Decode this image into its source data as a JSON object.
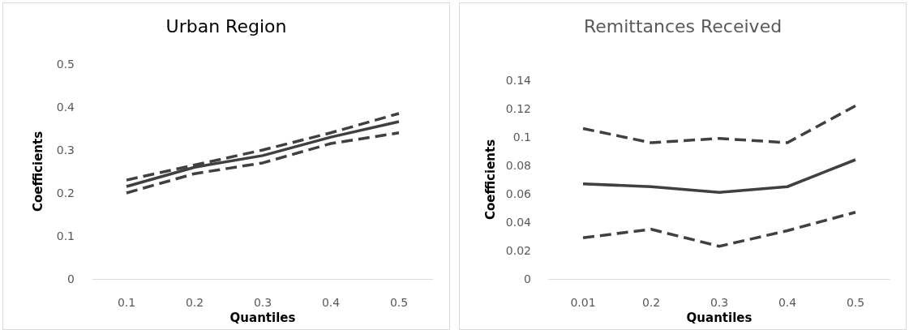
{
  "chart_data": [
    {
      "type": "line",
      "title": "Urban Region",
      "xlabel": "Quantiles",
      "ylabel": "Coefficients",
      "categories": [
        "0.1",
        "0.2",
        "0.3",
        "0.4",
        "0.5"
      ],
      "series": [
        {
          "color": "#404040",
          "line_style": "solid",
          "values": [
            0.215,
            0.26,
            0.287,
            0.33,
            0.366
          ]
        },
        {
          "color": "#404040",
          "line_style": "dashed",
          "values": [
            0.23,
            0.265,
            0.3,
            0.34,
            0.385
          ]
        },
        {
          "color": "#404040",
          "line_style": "dashed",
          "values": [
            0.2,
            0.245,
            0.27,
            0.315,
            0.34
          ]
        }
      ],
      "ylim": [
        0,
        0.5
      ],
      "yticks": [
        0,
        0.1,
        0.2,
        0.3,
        0.4,
        0.5
      ],
      "grid": false,
      "marker": "none"
    },
    {
      "type": "line",
      "title": "Remittances Received",
      "xlabel": "Quantiles",
      "ylabel": "Coefficients",
      "categories": [
        "0.01",
        "0.2",
        "0.3",
        "0.4",
        "0.5"
      ],
      "series": [
        {
          "color": "#404040",
          "line_style": "solid",
          "values": [
            0.067,
            0.065,
            0.061,
            0.065,
            0.084
          ]
        },
        {
          "color": "#404040",
          "line_style": "dashed",
          "values": [
            0.106,
            0.096,
            0.099,
            0.096,
            0.122
          ]
        },
        {
          "color": "#404040",
          "line_style": "dashed",
          "values": [
            0.029,
            0.035,
            0.023,
            0.034,
            0.047
          ]
        }
      ],
      "ylim": [
        0,
        0.14
      ],
      "yticks": [
        0,
        0.02,
        0.04,
        0.06,
        0.08,
        0.1,
        0.12,
        0.14
      ],
      "grid": false,
      "marker": "none"
    }
  ]
}
